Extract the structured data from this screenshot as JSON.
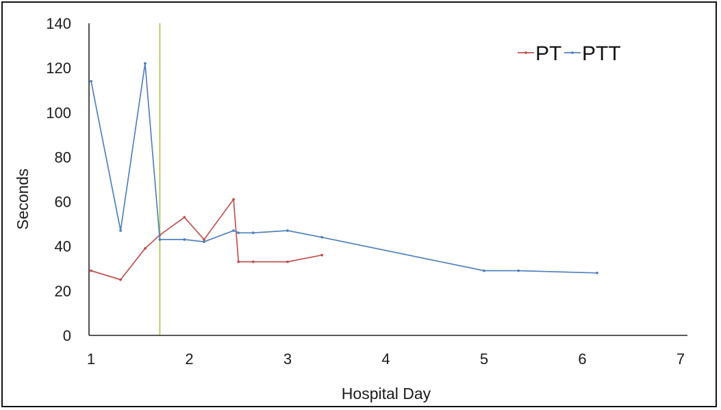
{
  "chart_data": {
    "type": "line",
    "xlabel": "Hospital Day",
    "ylabel": "Seconds",
    "xlim": [
      1,
      7
    ],
    "ylim": [
      0,
      140
    ],
    "x_ticks": [
      "1",
      "2",
      "3",
      "4",
      "5",
      "6",
      "7"
    ],
    "y_ticks": [
      "0",
      "20",
      "40",
      "60",
      "80",
      "100",
      "120",
      "140"
    ],
    "grid": false,
    "legend_position": "top-right",
    "reference_line_x": 1.7,
    "series": [
      {
        "name": "PT",
        "color": "#c0504d",
        "points": [
          {
            "x": 1.0,
            "y": 29
          },
          {
            "x": 1.3,
            "y": 25
          },
          {
            "x": 1.55,
            "y": 39
          },
          {
            "x": 1.7,
            "y": 45
          },
          {
            "x": 1.95,
            "y": 53
          },
          {
            "x": 2.15,
            "y": 43
          },
          {
            "x": 2.45,
            "y": 61
          },
          {
            "x": 2.5,
            "y": 33
          },
          {
            "x": 2.65,
            "y": 33
          },
          {
            "x": 3.0,
            "y": 33
          },
          {
            "x": 3.35,
            "y": 36
          }
        ]
      },
      {
        "name": "PTT",
        "color": "#4f81bd",
        "points": [
          {
            "x": 1.0,
            "y": 114
          },
          {
            "x": 1.3,
            "y": 47
          },
          {
            "x": 1.55,
            "y": 122
          },
          {
            "x": 1.7,
            "y": 43
          },
          {
            "x": 1.95,
            "y": 43
          },
          {
            "x": 2.15,
            "y": 42
          },
          {
            "x": 2.45,
            "y": 47
          },
          {
            "x": 2.5,
            "y": 46
          },
          {
            "x": 2.65,
            "y": 46
          },
          {
            "x": 3.0,
            "y": 47
          },
          {
            "x": 3.35,
            "y": 44
          },
          {
            "x": 5.0,
            "y": 29
          },
          {
            "x": 5.35,
            "y": 29
          },
          {
            "x": 6.15,
            "y": 28
          }
        ]
      }
    ]
  }
}
